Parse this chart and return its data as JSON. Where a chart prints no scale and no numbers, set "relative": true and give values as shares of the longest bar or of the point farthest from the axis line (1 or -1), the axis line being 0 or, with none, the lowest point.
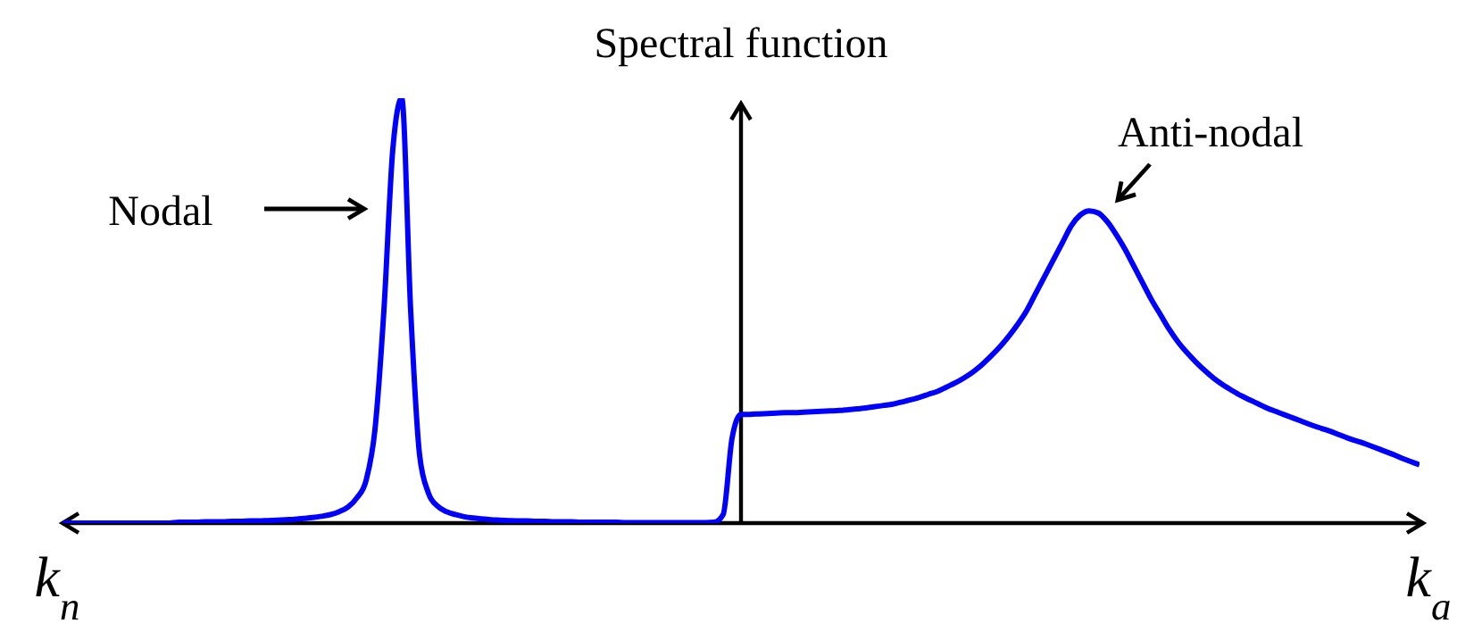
{
  "chart_data": {
    "type": "line",
    "relative": true,
    "ylabel": "Spectral function",
    "marker": "none",
    "line_style": "solid",
    "annotations": [
      "Nodal",
      "Anti-nodal",
      "k$_{n}$",
      "k$_{a}$"
    ],
    "categories": [
      null,
      null,
      null,
      null,
      null,
      null,
      null,
      null,
      null,
      null,
      null,
      null,
      null,
      null,
      null,
      null,
      null,
      null,
      null,
      null,
      null,
      null,
      null,
      null,
      null,
      null,
      null,
      null,
      null,
      null,
      null,
      null,
      null,
      null,
      null,
      null,
      null,
      null,
      null,
      null,
      null,
      null,
      null,
      null,
      null,
      null,
      null,
      null,
      null,
      null,
      null,
      null,
      null,
      null,
      null,
      null,
      null,
      null,
      null,
      null,
      null,
      null,
      null,
      null,
      null,
      null,
      null,
      null,
      null,
      null,
      null,
      null,
      null,
      null,
      null,
      null,
      null,
      null,
      null,
      null,
      null,
      null,
      null,
      null,
      null,
      null,
      null,
      null,
      null,
      null,
      null,
      null,
      null,
      null,
      null,
      null,
      null,
      null,
      null,
      null,
      null,
      null,
      null,
      null,
      null,
      null,
      null,
      null,
      null,
      null,
      null,
      null,
      null,
      null,
      null,
      null,
      null,
      null,
      null,
      null,
      null,
      null,
      null,
      null,
      null,
      null,
      null,
      null,
      null,
      null,
      null,
      null,
      null,
      null,
      null,
      null,
      null,
      null,
      null,
      null,
      null,
      null,
      null,
      null,
      null,
      null,
      null,
      null,
      null,
      null,
      null,
      null,
      null
    ],
    "series": [
      {
        "color": "#0000ff",
        "values": [
          0,
          0,
          0,
          0,
          0,
          0,
          0,
          0,
          0,
          0,
          0,
          0,
          0,
          0.002,
          0.002,
          0.002,
          0.003,
          0.003,
          0.003,
          0.004,
          0.004,
          0.005,
          0.005,
          0.006,
          0.007,
          0.008,
          0.009,
          0.011,
          0.013,
          0.016,
          0.02,
          0.027,
          0.038,
          0.06,
          0.1,
          0.22,
          0.5,
          0.88,
          1,
          0.5,
          0.16,
          0.07,
          0.04,
          0.027,
          0.02,
          0.015,
          0.012,
          0.01,
          0.008,
          0.007,
          0.006,
          0.005,
          0.005,
          0.004,
          0.004,
          0.003,
          0.003,
          0.003,
          0.002,
          0.002,
          0.002,
          0.002,
          0.002,
          0.001,
          0.001,
          0.001,
          0.001,
          0.001,
          0.001,
          0.001,
          0.001,
          0.001,
          0.001,
          0.002,
          0.02,
          0.2,
          0.256,
          0.256,
          0.257,
          0.258,
          0.259,
          0.26,
          0.26,
          0.261,
          0.262,
          0.263,
          0.264,
          0.265,
          0.267,
          0.269,
          0.271,
          0.274,
          0.277,
          0.28,
          0.285,
          0.29,
          0.296,
          0.303,
          0.31,
          0.32,
          0.33,
          0.342,
          0.356,
          0.373,
          0.393,
          0.415,
          0.44,
          0.468,
          0.5,
          0.54,
          0.58,
          0.62,
          0.66,
          0.7,
          0.725,
          0.735,
          0.73,
          0.71,
          0.68,
          0.645,
          0.605,
          0.565,
          0.525,
          0.49,
          0.455,
          0.425,
          0.4,
          0.378,
          0.358,
          0.34,
          0.325,
          0.312,
          0.3,
          0.29,
          0.28,
          0.27,
          0.262,
          0.254,
          0.246,
          0.238,
          0.23,
          0.223,
          0.216,
          0.208,
          0.2,
          0.193,
          0.186,
          0.178,
          0.17,
          0.162,
          0.153,
          0.145,
          0.137
        ]
      }
    ]
  }
}
